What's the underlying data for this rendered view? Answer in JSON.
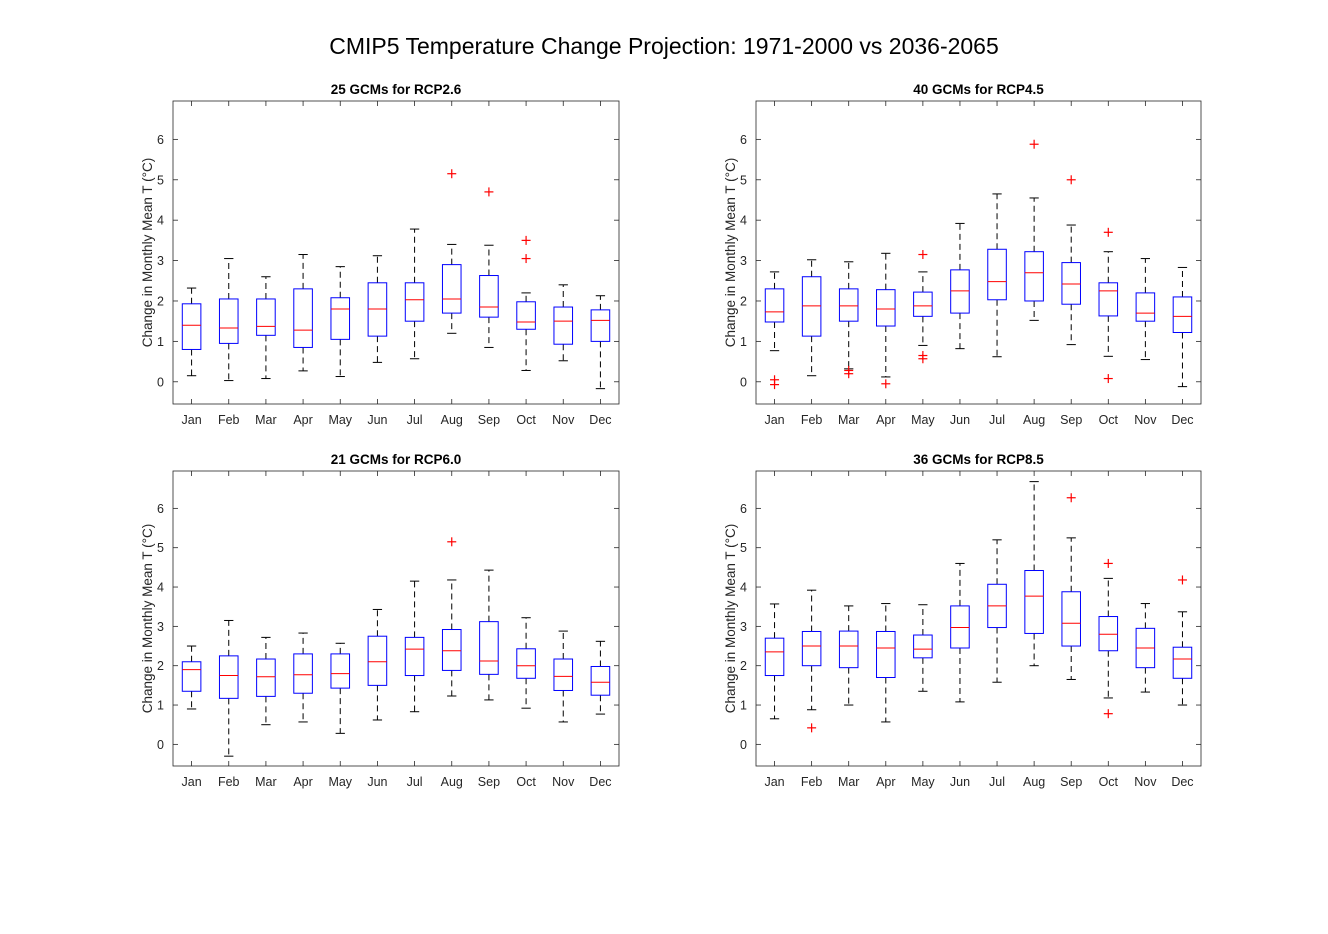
{
  "figure": {
    "title": "CMIP5 Temperature Change Projection: 1971-2000 vs 2036-2065"
  },
  "colors": {
    "box": "#0000ff",
    "median": "#ff0000",
    "whisker": "#000000",
    "outlier": "#ff0000",
    "axis": "#262626"
  },
  "chart_data": [
    {
      "type": "box",
      "title": "25 GCMs for RCP2.6",
      "ylabel": "Change in Monthly Mean T (°C)",
      "ylim": [
        -0.55,
        6.95
      ],
      "yticks": [
        0,
        1,
        2,
        3,
        4,
        5,
        6
      ],
      "categories": [
        "Jan",
        "Feb",
        "Mar",
        "Apr",
        "May",
        "Jun",
        "Jul",
        "Aug",
        "Sep",
        "Oct",
        "Nov",
        "Dec"
      ],
      "boxes": [
        {
          "lower_whisker": 0.15,
          "q1": 0.8,
          "median": 1.4,
          "q3": 1.93,
          "upper_whisker": 2.32,
          "outliers": []
        },
        {
          "lower_whisker": 0.03,
          "q1": 0.95,
          "median": 1.33,
          "q3": 2.05,
          "upper_whisker": 3.05,
          "outliers": []
        },
        {
          "lower_whisker": 0.08,
          "q1": 1.15,
          "median": 1.37,
          "q3": 2.05,
          "upper_whisker": 2.6,
          "outliers": []
        },
        {
          "lower_whisker": 0.27,
          "q1": 0.85,
          "median": 1.28,
          "q3": 2.3,
          "upper_whisker": 3.15,
          "outliers": []
        },
        {
          "lower_whisker": 0.13,
          "q1": 1.05,
          "median": 1.8,
          "q3": 2.08,
          "upper_whisker": 2.85,
          "outliers": []
        },
        {
          "lower_whisker": 0.48,
          "q1": 1.13,
          "median": 1.8,
          "q3": 2.45,
          "upper_whisker": 3.12,
          "outliers": []
        },
        {
          "lower_whisker": 0.57,
          "q1": 1.5,
          "median": 2.03,
          "q3": 2.45,
          "upper_whisker": 3.78,
          "outliers": []
        },
        {
          "lower_whisker": 1.2,
          "q1": 1.7,
          "median": 2.05,
          "q3": 2.9,
          "upper_whisker": 3.4,
          "outliers": [
            5.15
          ]
        },
        {
          "lower_whisker": 0.85,
          "q1": 1.6,
          "median": 1.85,
          "q3": 2.63,
          "upper_whisker": 3.38,
          "outliers": [
            4.7
          ]
        },
        {
          "lower_whisker": 0.28,
          "q1": 1.3,
          "median": 1.48,
          "q3": 1.98,
          "upper_whisker": 2.2,
          "outliers": [
            3.05,
            3.5
          ]
        },
        {
          "lower_whisker": 0.52,
          "q1": 0.93,
          "median": 1.5,
          "q3": 1.85,
          "upper_whisker": 2.4,
          "outliers": []
        },
        {
          "lower_whisker": -0.17,
          "q1": 1.0,
          "median": 1.52,
          "q3": 1.78,
          "upper_whisker": 2.13,
          "outliers": []
        }
      ]
    },
    {
      "type": "box",
      "title": "40 GCMs for RCP4.5",
      "ylabel": "Change in Monthly Mean T (°C)",
      "ylim": [
        -0.55,
        6.95
      ],
      "yticks": [
        0,
        1,
        2,
        3,
        4,
        5,
        6
      ],
      "categories": [
        "Jan",
        "Feb",
        "Mar",
        "Apr",
        "May",
        "Jun",
        "Jul",
        "Aug",
        "Sep",
        "Oct",
        "Nov",
        "Dec"
      ],
      "boxes": [
        {
          "lower_whisker": 0.77,
          "q1": 1.48,
          "median": 1.73,
          "q3": 2.3,
          "upper_whisker": 2.72,
          "outliers": [
            0.05,
            -0.07
          ]
        },
        {
          "lower_whisker": 0.15,
          "q1": 1.13,
          "median": 1.88,
          "q3": 2.6,
          "upper_whisker": 3.02,
          "outliers": []
        },
        {
          "lower_whisker": 0.32,
          "q1": 1.5,
          "median": 1.88,
          "q3": 2.3,
          "upper_whisker": 2.97,
          "outliers": [
            0.2,
            0.28
          ]
        },
        {
          "lower_whisker": 0.12,
          "q1": 1.38,
          "median": 1.8,
          "q3": 2.28,
          "upper_whisker": 3.18,
          "outliers": [
            -0.05
          ]
        },
        {
          "lower_whisker": 0.9,
          "q1": 1.62,
          "median": 1.88,
          "q3": 2.22,
          "upper_whisker": 2.72,
          "outliers": [
            0.57,
            0.65,
            3.15
          ]
        },
        {
          "lower_whisker": 0.82,
          "q1": 1.7,
          "median": 2.25,
          "q3": 2.77,
          "upper_whisker": 3.92,
          "outliers": []
        },
        {
          "lower_whisker": 0.62,
          "q1": 2.03,
          "median": 2.48,
          "q3": 3.28,
          "upper_whisker": 4.65,
          "outliers": []
        },
        {
          "lower_whisker": 1.52,
          "q1": 2.0,
          "median": 2.7,
          "q3": 3.22,
          "upper_whisker": 4.55,
          "outliers": [
            5.88
          ]
        },
        {
          "lower_whisker": 0.92,
          "q1": 1.92,
          "median": 2.42,
          "q3": 2.95,
          "upper_whisker": 3.88,
          "outliers": [
            5.0
          ]
        },
        {
          "lower_whisker": 0.63,
          "q1": 1.63,
          "median": 2.25,
          "q3": 2.45,
          "upper_whisker": 3.22,
          "outliers": [
            0.08,
            3.7
          ]
        },
        {
          "lower_whisker": 0.55,
          "q1": 1.5,
          "median": 1.7,
          "q3": 2.2,
          "upper_whisker": 3.05,
          "outliers": []
        },
        {
          "lower_whisker": -0.12,
          "q1": 1.22,
          "median": 1.62,
          "q3": 2.1,
          "upper_whisker": 2.83,
          "outliers": []
        }
      ]
    },
    {
      "type": "box",
      "title": "21 GCMs for RCP6.0",
      "ylabel": "Change in Monthly Mean T (°C)",
      "ylim": [
        -0.55,
        6.95
      ],
      "yticks": [
        0,
        1,
        2,
        3,
        4,
        5,
        6
      ],
      "categories": [
        "Jan",
        "Feb",
        "Mar",
        "Apr",
        "May",
        "Jun",
        "Jul",
        "Aug",
        "Sep",
        "Oct",
        "Nov",
        "Dec"
      ],
      "boxes": [
        {
          "lower_whisker": 0.9,
          "q1": 1.35,
          "median": 1.9,
          "q3": 2.1,
          "upper_whisker": 2.5,
          "outliers": []
        },
        {
          "lower_whisker": -0.3,
          "q1": 1.17,
          "median": 1.75,
          "q3": 2.25,
          "upper_whisker": 3.15,
          "outliers": []
        },
        {
          "lower_whisker": 0.5,
          "q1": 1.22,
          "median": 1.72,
          "q3": 2.17,
          "upper_whisker": 2.72,
          "outliers": []
        },
        {
          "lower_whisker": 0.57,
          "q1": 1.3,
          "median": 1.77,
          "q3": 2.3,
          "upper_whisker": 2.83,
          "outliers": []
        },
        {
          "lower_whisker": 0.28,
          "q1": 1.43,
          "median": 1.8,
          "q3": 2.3,
          "upper_whisker": 2.57,
          "outliers": []
        },
        {
          "lower_whisker": 0.62,
          "q1": 1.5,
          "median": 2.1,
          "q3": 2.75,
          "upper_whisker": 3.43,
          "outliers": []
        },
        {
          "lower_whisker": 0.83,
          "q1": 1.75,
          "median": 2.42,
          "q3": 2.72,
          "upper_whisker": 4.15,
          "outliers": []
        },
        {
          "lower_whisker": 1.23,
          "q1": 1.88,
          "median": 2.38,
          "q3": 2.92,
          "upper_whisker": 4.18,
          "outliers": [
            5.15
          ]
        },
        {
          "lower_whisker": 1.13,
          "q1": 1.78,
          "median": 2.12,
          "q3": 3.12,
          "upper_whisker": 4.43,
          "outliers": []
        },
        {
          "lower_whisker": 0.92,
          "q1": 1.68,
          "median": 2.0,
          "q3": 2.43,
          "upper_whisker": 3.22,
          "outliers": []
        },
        {
          "lower_whisker": 0.57,
          "q1": 1.37,
          "median": 1.73,
          "q3": 2.17,
          "upper_whisker": 2.88,
          "outliers": []
        },
        {
          "lower_whisker": 0.77,
          "q1": 1.25,
          "median": 1.58,
          "q3": 1.98,
          "upper_whisker": 2.62,
          "outliers": []
        }
      ]
    },
    {
      "type": "box",
      "title": "36 GCMs for RCP8.5",
      "ylabel": "Change in Monthly Mean T (°C)",
      "ylim": [
        -0.55,
        6.95
      ],
      "yticks": [
        0,
        1,
        2,
        3,
        4,
        5,
        6
      ],
      "categories": [
        "Jan",
        "Feb",
        "Mar",
        "Apr",
        "May",
        "Jun",
        "Jul",
        "Aug",
        "Sep",
        "Oct",
        "Nov",
        "Dec"
      ],
      "boxes": [
        {
          "lower_whisker": 0.65,
          "q1": 1.75,
          "median": 2.35,
          "q3": 2.7,
          "upper_whisker": 3.57,
          "outliers": []
        },
        {
          "lower_whisker": 0.88,
          "q1": 2.0,
          "median": 2.5,
          "q3": 2.87,
          "upper_whisker": 3.92,
          "outliers": [
            0.42
          ]
        },
        {
          "lower_whisker": 1.0,
          "q1": 1.95,
          "median": 2.5,
          "q3": 2.88,
          "upper_whisker": 3.52,
          "outliers": []
        },
        {
          "lower_whisker": 0.57,
          "q1": 1.7,
          "median": 2.45,
          "q3": 2.87,
          "upper_whisker": 3.58,
          "outliers": []
        },
        {
          "lower_whisker": 1.35,
          "q1": 2.2,
          "median": 2.42,
          "q3": 2.78,
          "upper_whisker": 3.55,
          "outliers": []
        },
        {
          "lower_whisker": 1.08,
          "q1": 2.45,
          "median": 2.97,
          "q3": 3.52,
          "upper_whisker": 4.6,
          "outliers": []
        },
        {
          "lower_whisker": 1.58,
          "q1": 2.97,
          "median": 3.52,
          "q3": 4.07,
          "upper_whisker": 5.2,
          "outliers": []
        },
        {
          "lower_whisker": 2.0,
          "q1": 2.82,
          "median": 3.77,
          "q3": 4.42,
          "upper_whisker": 6.68,
          "outliers": []
        },
        {
          "lower_whisker": 1.65,
          "q1": 2.5,
          "median": 3.08,
          "q3": 3.88,
          "upper_whisker": 5.25,
          "outliers": [
            6.27
          ]
        },
        {
          "lower_whisker": 1.18,
          "q1": 2.38,
          "median": 2.8,
          "q3": 3.25,
          "upper_whisker": 4.22,
          "outliers": [
            0.78,
            4.6
          ]
        },
        {
          "lower_whisker": 1.33,
          "q1": 1.95,
          "median": 2.45,
          "q3": 2.95,
          "upper_whisker": 3.58,
          "outliers": []
        },
        {
          "lower_whisker": 1.0,
          "q1": 1.68,
          "median": 2.17,
          "q3": 2.47,
          "upper_whisker": 3.37,
          "outliers": [
            4.18
          ]
        }
      ]
    }
  ]
}
